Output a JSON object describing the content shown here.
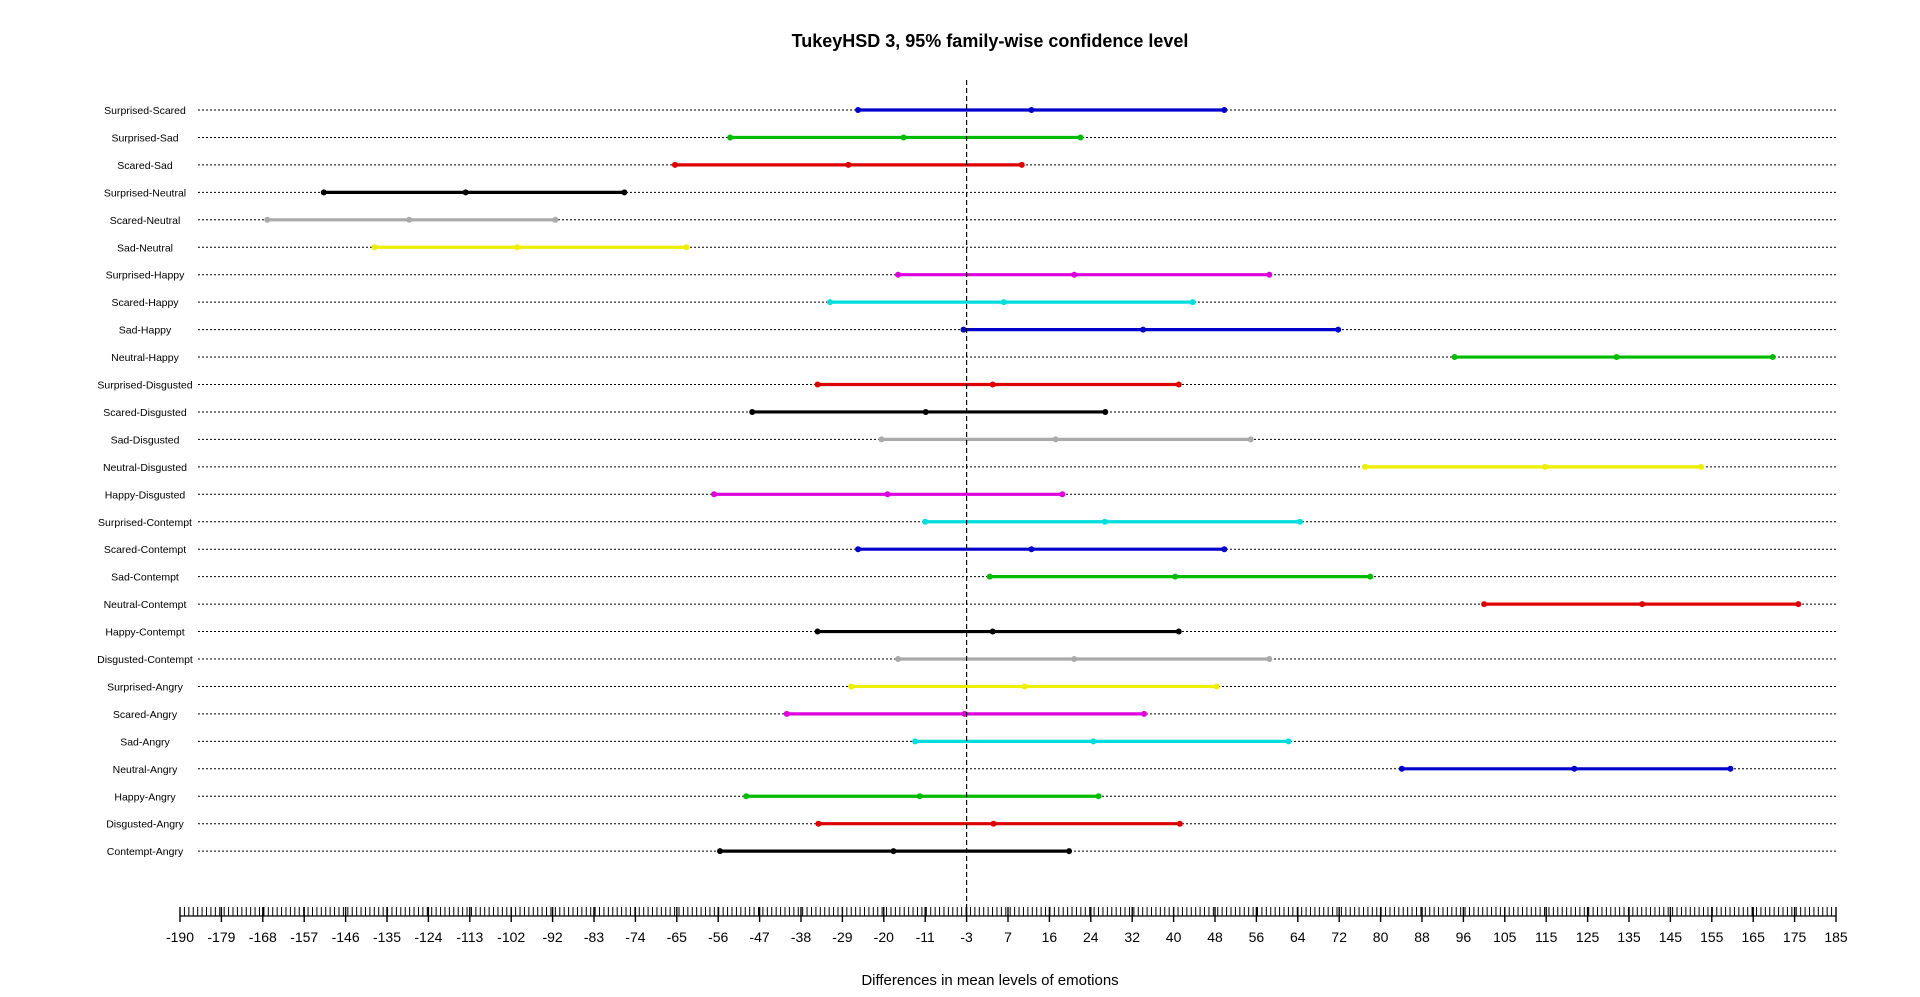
{
  "chart_data": {
    "type": "interval",
    "title": "TukeyHSD 3, 95% family-wise confidence level",
    "xlabel": "Differences in mean levels of emotions",
    "xlim": [
      -190,
      185
    ],
    "reference_line": -3,
    "x_tick_labels": [
      "-190",
      "-179",
      "-168",
      "-157",
      "-146",
      "-135",
      "-124",
      "-113",
      "-102",
      "-92",
      "-83",
      "-74",
      "-65",
      "-56",
      "-47",
      "-38",
      "-29",
      "-20",
      "-11",
      "-3",
      "7",
      "16",
      "24",
      "32",
      "40",
      "48",
      "56",
      "64",
      "72",
      "80",
      "88",
      "96",
      "105",
      "115",
      "125",
      "135",
      "145",
      "155",
      "165",
      "175",
      "185"
    ],
    "comparisons": [
      {
        "label": "Surprised-Scared",
        "lwr": -25.6,
        "diff": 12.1,
        "upr": 49.8,
        "color": "#0000cc"
      },
      {
        "label": "Surprised-Sad",
        "lwr": -53.4,
        "diff": -15.7,
        "upr": 22.0,
        "color": "#00bb00"
      },
      {
        "label": "Scared-Sad",
        "lwr": -65.4,
        "diff": -27.7,
        "upr": 10.0,
        "color": "#dd0000"
      },
      {
        "label": "Surprised-Neutral",
        "lwr": -151.8,
        "diff": -114.1,
        "upr": -76.4,
        "color": "#000000"
      },
      {
        "label": "Scared-Neutral",
        "lwr": -166.8,
        "diff": -129.1,
        "upr": -91.4,
        "color": "#aaaaaa"
      },
      {
        "label": "Sad-Neutral",
        "lwr": -138.3,
        "diff": -100.6,
        "upr": -62.9,
        "color": "#eeee00"
      },
      {
        "label": "Surprised-Happy",
        "lwr": -16.9,
        "diff": 20.8,
        "upr": 58.5,
        "color": "#dd00dd"
      },
      {
        "label": "Scared-Happy",
        "lwr": -31.7,
        "diff": 6.0,
        "upr": 43.7,
        "color": "#00dddd"
      },
      {
        "label": "Sad-Happy",
        "lwr": -3.6,
        "diff": 34.1,
        "upr": 71.8,
        "color": "#0000cc"
      },
      {
        "label": "Neutral-Happy",
        "lwr": 94.3,
        "diff": 132.0,
        "upr": 169.7,
        "color": "#00bb00"
      },
      {
        "label": "Surprised-Disgusted",
        "lwr": -34.4,
        "diff": 3.3,
        "upr": 41.0,
        "color": "#dd0000"
      },
      {
        "label": "Scared-Disgusted",
        "lwr": -48.6,
        "diff": -10.9,
        "upr": 26.8,
        "color": "#000000"
      },
      {
        "label": "Sad-Disgusted",
        "lwr": -20.5,
        "diff": 17.2,
        "upr": 54.9,
        "color": "#aaaaaa"
      },
      {
        "label": "Neutral-Disgusted",
        "lwr": 77.0,
        "diff": 114.7,
        "upr": 152.4,
        "color": "#eeee00"
      },
      {
        "label": "Happy-Disgusted",
        "lwr": -56.9,
        "diff": -19.2,
        "upr": 18.5,
        "color": "#dd00dd"
      },
      {
        "label": "Surprised-Contempt",
        "lwr": -11.0,
        "diff": 26.7,
        "upr": 64.4,
        "color": "#00dddd"
      },
      {
        "label": "Scared-Contempt",
        "lwr": -25.6,
        "diff": 12.1,
        "upr": 49.8,
        "color": "#0000cc"
      },
      {
        "label": "Sad-Contempt",
        "lwr": 2.6,
        "diff": 40.3,
        "upr": 78.0,
        "color": "#00bb00"
      },
      {
        "label": "Neutral-Contempt",
        "lwr": 100.5,
        "diff": 138.2,
        "upr": 175.9,
        "color": "#dd0000"
      },
      {
        "label": "Happy-Contempt",
        "lwr": -34.4,
        "diff": 3.3,
        "upr": 41.0,
        "color": "#000000"
      },
      {
        "label": "Disgusted-Contempt",
        "lwr": -16.9,
        "diff": 20.8,
        "upr": 58.5,
        "color": "#aaaaaa"
      },
      {
        "label": "Surprised-Angry",
        "lwr": -27.1,
        "diff": 10.6,
        "upr": 48.3,
        "color": "#eeee00"
      },
      {
        "label": "Scared-Angry",
        "lwr": -41.1,
        "diff": -3.4,
        "upr": 34.3,
        "color": "#dd00dd"
      },
      {
        "label": "Sad-Angry",
        "lwr": -13.2,
        "diff": 24.5,
        "upr": 62.2,
        "color": "#00dddd"
      },
      {
        "label": "Neutral-Angry",
        "lwr": 84.1,
        "diff": 121.8,
        "upr": 159.5,
        "color": "#0000cc"
      },
      {
        "label": "Happy-Angry",
        "lwr": -49.9,
        "diff": -12.2,
        "upr": 25.5,
        "color": "#00bb00"
      },
      {
        "label": "Disgusted-Angry",
        "lwr": -34.2,
        "diff": 3.5,
        "upr": 41.2,
        "color": "#dd0000"
      },
      {
        "label": "Contempt-Angry",
        "lwr": -55.6,
        "diff": -17.9,
        "upr": 19.8,
        "color": "#000000"
      }
    ]
  }
}
